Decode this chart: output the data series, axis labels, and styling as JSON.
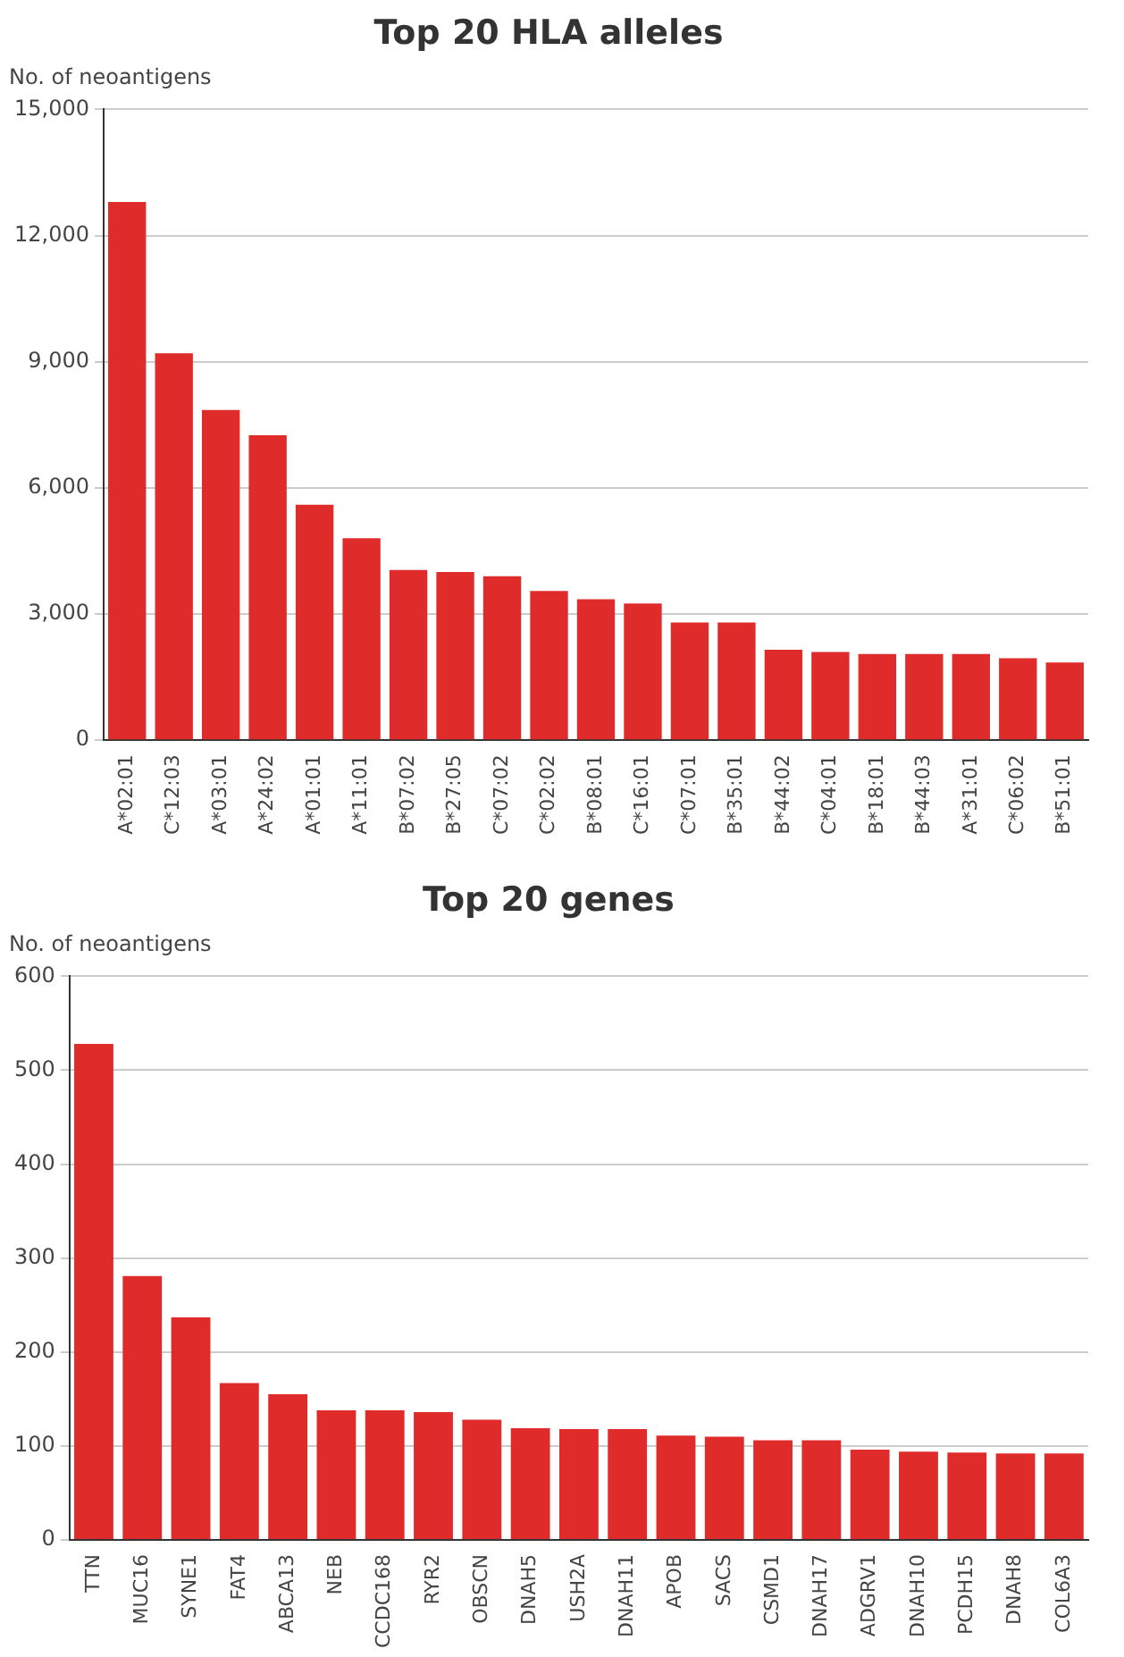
{
  "chart_data": [
    {
      "type": "bar",
      "title": "Top 20 HLA alleles",
      "ylabel": "No. of neoantigens",
      "categories": [
        "A*02:01",
        "C*12:03",
        "A*03:01",
        "A*24:02",
        "A*01:01",
        "A*11:01",
        "B*07:02",
        "B*27:05",
        "C*07:02",
        "C*02:02",
        "B*08:01",
        "C*16:01",
        "C*07:01",
        "B*35:01",
        "B*44:02",
        "C*04:01",
        "B*18:01",
        "B*44:03",
        "A*31:01",
        "C*06:02",
        "B*51:01"
      ],
      "values": [
        12800,
        9200,
        7850,
        7250,
        5600,
        4800,
        4050,
        4000,
        3900,
        3550,
        3350,
        3250,
        2800,
        2800,
        2150,
        2100,
        2050,
        2050,
        2050,
        1950,
        1850
      ],
      "color": "#e02b2b",
      "ylim": [
        0,
        15000
      ],
      "yticks": [
        0,
        {
          "value": 3000,
          "label": "3,000"
        },
        {
          "value": 6000,
          "label": "6,000"
        },
        {
          "value": 9000,
          "label": "9,000"
        },
        {
          "value": 12000,
          "label": "12,000"
        },
        {
          "value": 15000,
          "label": "15,000"
        }
      ],
      "grid": "y"
    },
    {
      "type": "bar",
      "title": "Top 20 genes",
      "ylabel": "No. of neoantigens",
      "categories": [
        "TTN",
        "MUC16",
        "SYNE1",
        "FAT4",
        "ABCA13",
        "NEB",
        "CCDC168",
        "RYR2",
        "OBSCN",
        "DNAH5",
        "USH2A",
        "DNAH11",
        "APOB",
        "SACS",
        "CSMD1",
        "DNAH17",
        "ADGRV1",
        "DNAH10",
        "PCDH15",
        "DNAH8",
        "COL6A3"
      ],
      "values": [
        528,
        281,
        237,
        167,
        155,
        138,
        138,
        136,
        128,
        119,
        118,
        118,
        111,
        110,
        106,
        106,
        96,
        94,
        93,
        92,
        92
      ],
      "color": "#e02b2b",
      "ylim": [
        0,
        600
      ],
      "yticks": [
        0,
        100,
        200,
        300,
        400,
        500,
        600
      ],
      "grid": "y"
    }
  ]
}
